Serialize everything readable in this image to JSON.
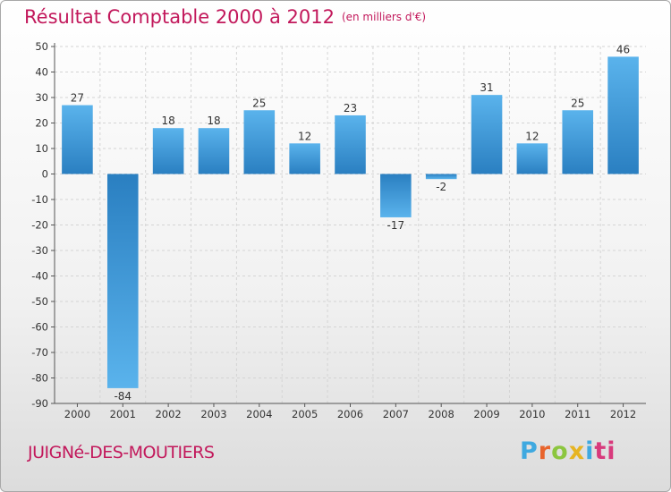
{
  "header": {
    "title": "Résultat Comptable 2000 à 2012",
    "unit": "(en milliers d'€)"
  },
  "footer": {
    "commune": "JUIGNé-DES-MOUTIERS",
    "logo": [
      "P",
      "r",
      "o",
      "x",
      "i",
      "ti"
    ]
  },
  "colors": {
    "bar_light": "#5ab3ec",
    "bar_dark": "#2a7fc1",
    "title": "#c2185b"
  },
  "chart_data": {
    "type": "bar",
    "title": "Résultat Comptable 2000 à 2012",
    "unit_label": "(en milliers d'€)",
    "categories": [
      "2000",
      "2001",
      "2002",
      "2003",
      "2004",
      "2005",
      "2006",
      "2007",
      "2008",
      "2009",
      "2010",
      "2011",
      "2012"
    ],
    "values": [
      27,
      -84,
      18,
      18,
      25,
      12,
      23,
      -17,
      -2,
      31,
      12,
      25,
      46
    ],
    "ylim": [
      -90,
      50
    ],
    "yticks": [
      50,
      40,
      30,
      20,
      10,
      0,
      -10,
      -20,
      -30,
      -40,
      -50,
      -60,
      -70,
      -80,
      -90
    ],
    "grid": true,
    "legend": "none"
  }
}
